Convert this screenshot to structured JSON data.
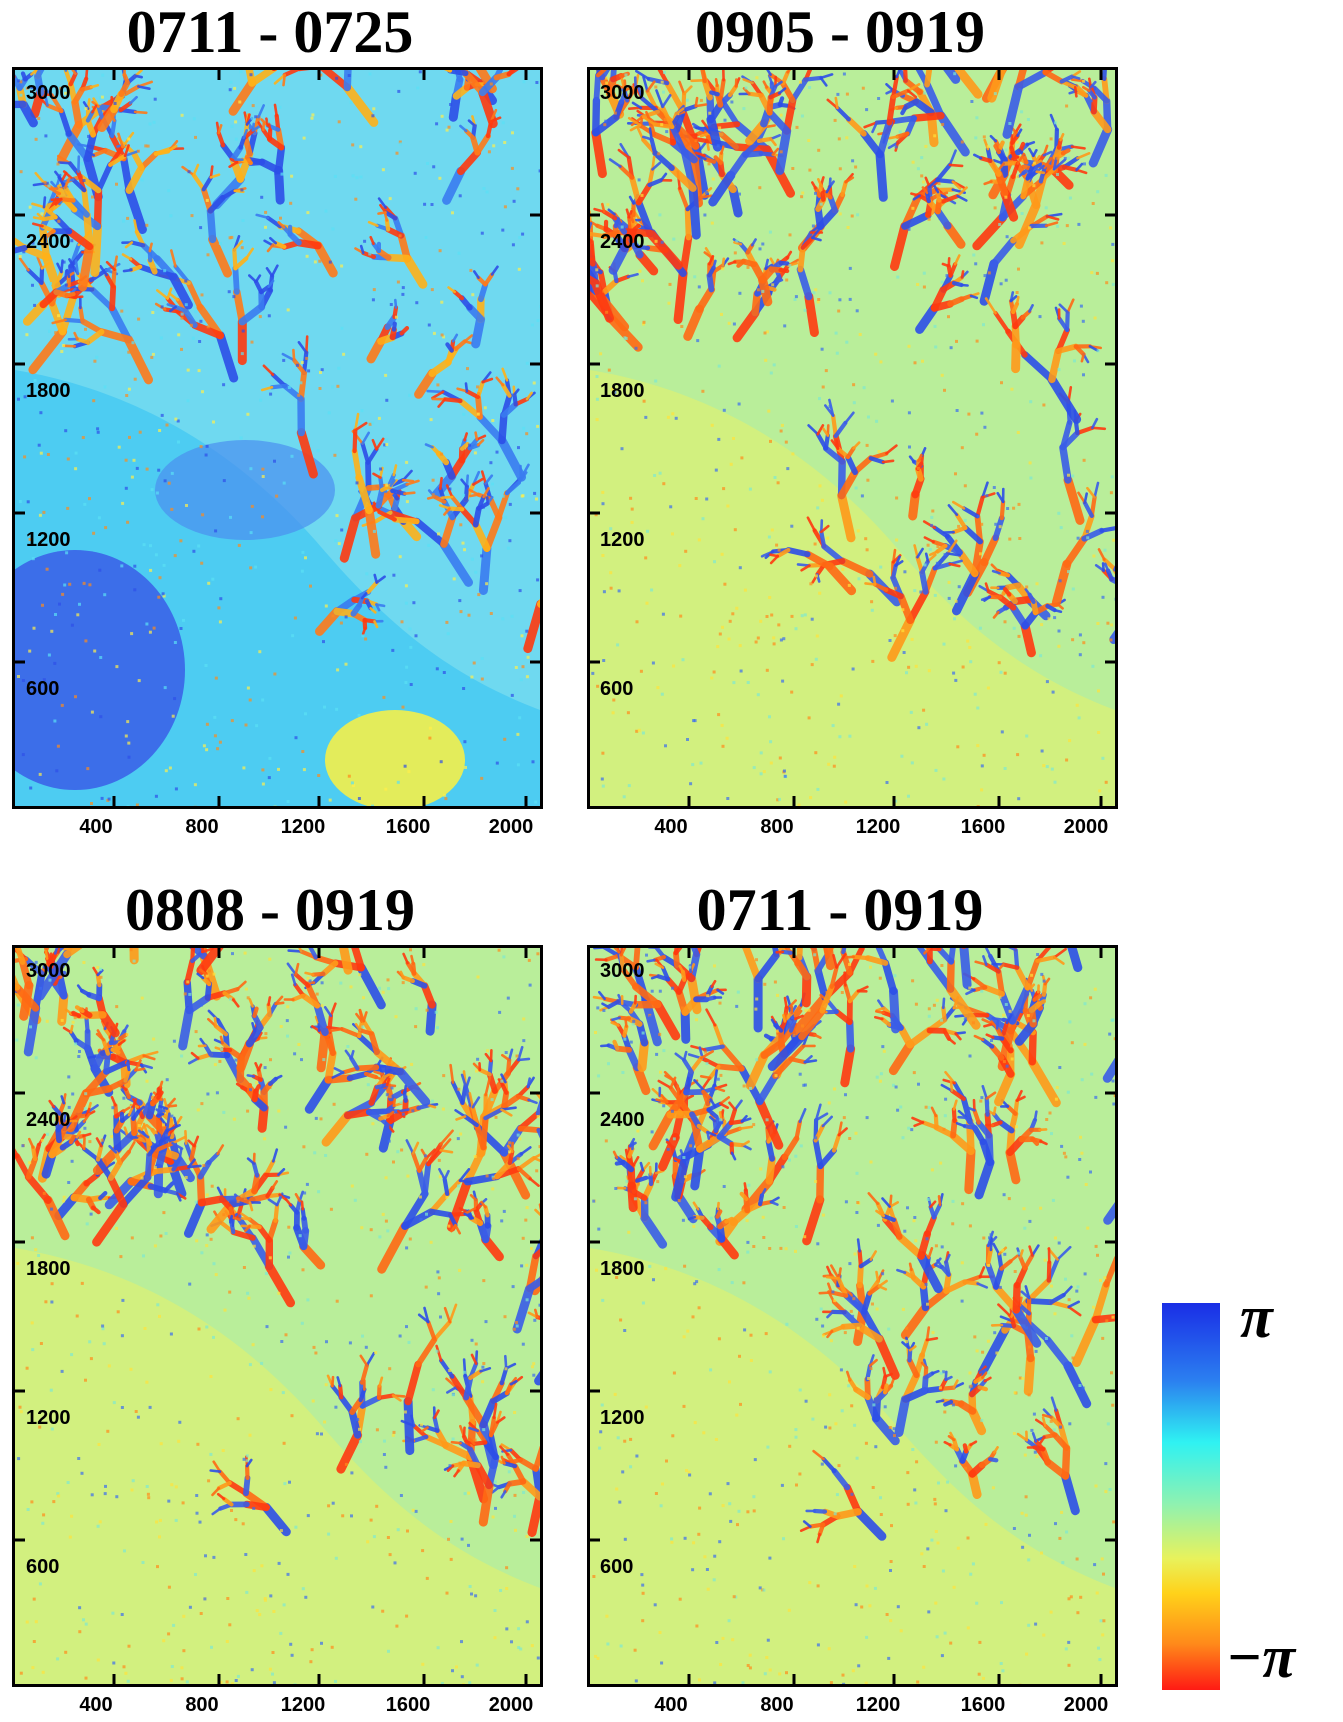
{
  "panels": [
    {
      "title": "0711 - 0725",
      "y_ticks": [
        "3000",
        "2400",
        "1800",
        "1200",
        "600"
      ],
      "x_ticks": [
        "400",
        "800",
        "1200",
        "1600",
        "2000"
      ],
      "palette": "strong"
    },
    {
      "title": "0905 - 0919",
      "y_ticks": [
        "3000",
        "2400",
        "1800",
        "1200",
        "600"
      ],
      "x_ticks": [
        "400",
        "800",
        "1200",
        "1600",
        "2000"
      ],
      "palette": "warm"
    },
    {
      "title": "0808 - 0919",
      "y_ticks": [
        "3000",
        "2400",
        "1800",
        "1200",
        "600"
      ],
      "x_ticks": [
        "400",
        "800",
        "1200",
        "1600",
        "2000"
      ],
      "palette": "warm"
    },
    {
      "title": "0711 - 0919",
      "y_ticks": [
        "3000",
        "2400",
        "1800",
        "1200",
        "600"
      ],
      "x_ticks": [
        "400",
        "800",
        "1200",
        "1600",
        "2000"
      ],
      "palette": "warm"
    }
  ],
  "colorbar": {
    "max_label": "π",
    "min_label": "−π",
    "colors": [
      "#1a2ee6",
      "#2ff2f2",
      "#e8f25c",
      "#ff1a14"
    ]
  }
}
